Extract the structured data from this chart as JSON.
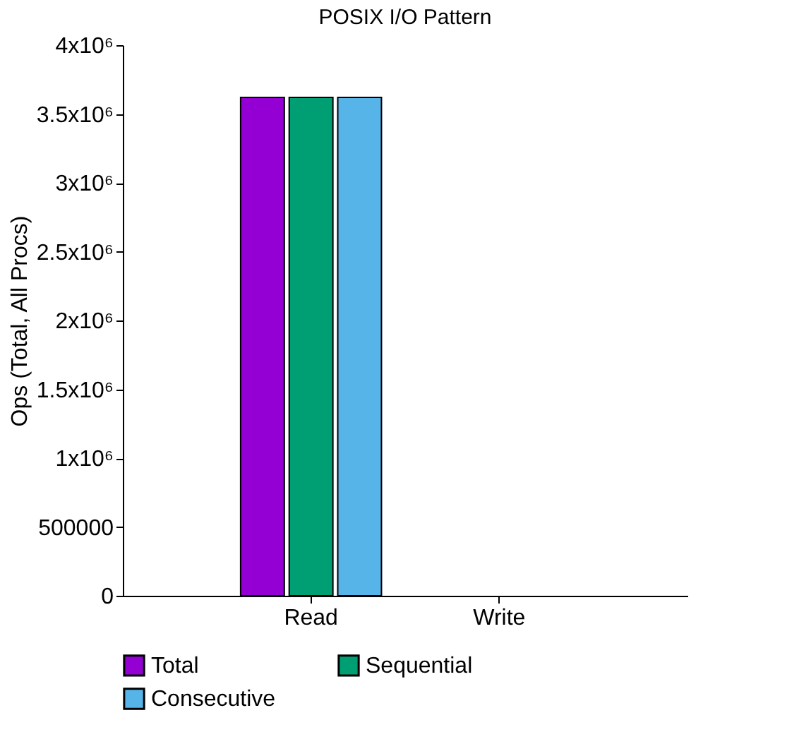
{
  "chart_data": {
    "type": "bar",
    "title": "POSIX I/O Pattern",
    "ylabel": "Ops (Total, All Procs)",
    "categories": [
      "Read",
      "Write"
    ],
    "series": [
      {
        "name": "Total",
        "color": "#9400d3",
        "values": [
          3620000,
          0
        ]
      },
      {
        "name": "Sequential",
        "color": "#009e73",
        "values": [
          3620000,
          0
        ]
      },
      {
        "name": "Consecutive",
        "color": "#56b4e9",
        "values": [
          3620000,
          0
        ]
      }
    ],
    "ylim": [
      0,
      4000000
    ],
    "yticks": [
      0,
      500000,
      {
        "value": 1000000,
        "label": "1x10⁶"
      },
      {
        "value": 1500000,
        "label": "1.5x10⁶"
      },
      {
        "value": 2000000,
        "label": "2x10⁶"
      },
      {
        "value": 2500000,
        "label": "2.5x10⁶"
      },
      {
        "value": 3000000,
        "label": "3x10⁶"
      },
      {
        "value": 3500000,
        "label": "3.5x10⁶"
      },
      {
        "value": 4000000,
        "label": "4x10⁶"
      }
    ],
    "grid": false,
    "legend": "bottom"
  }
}
